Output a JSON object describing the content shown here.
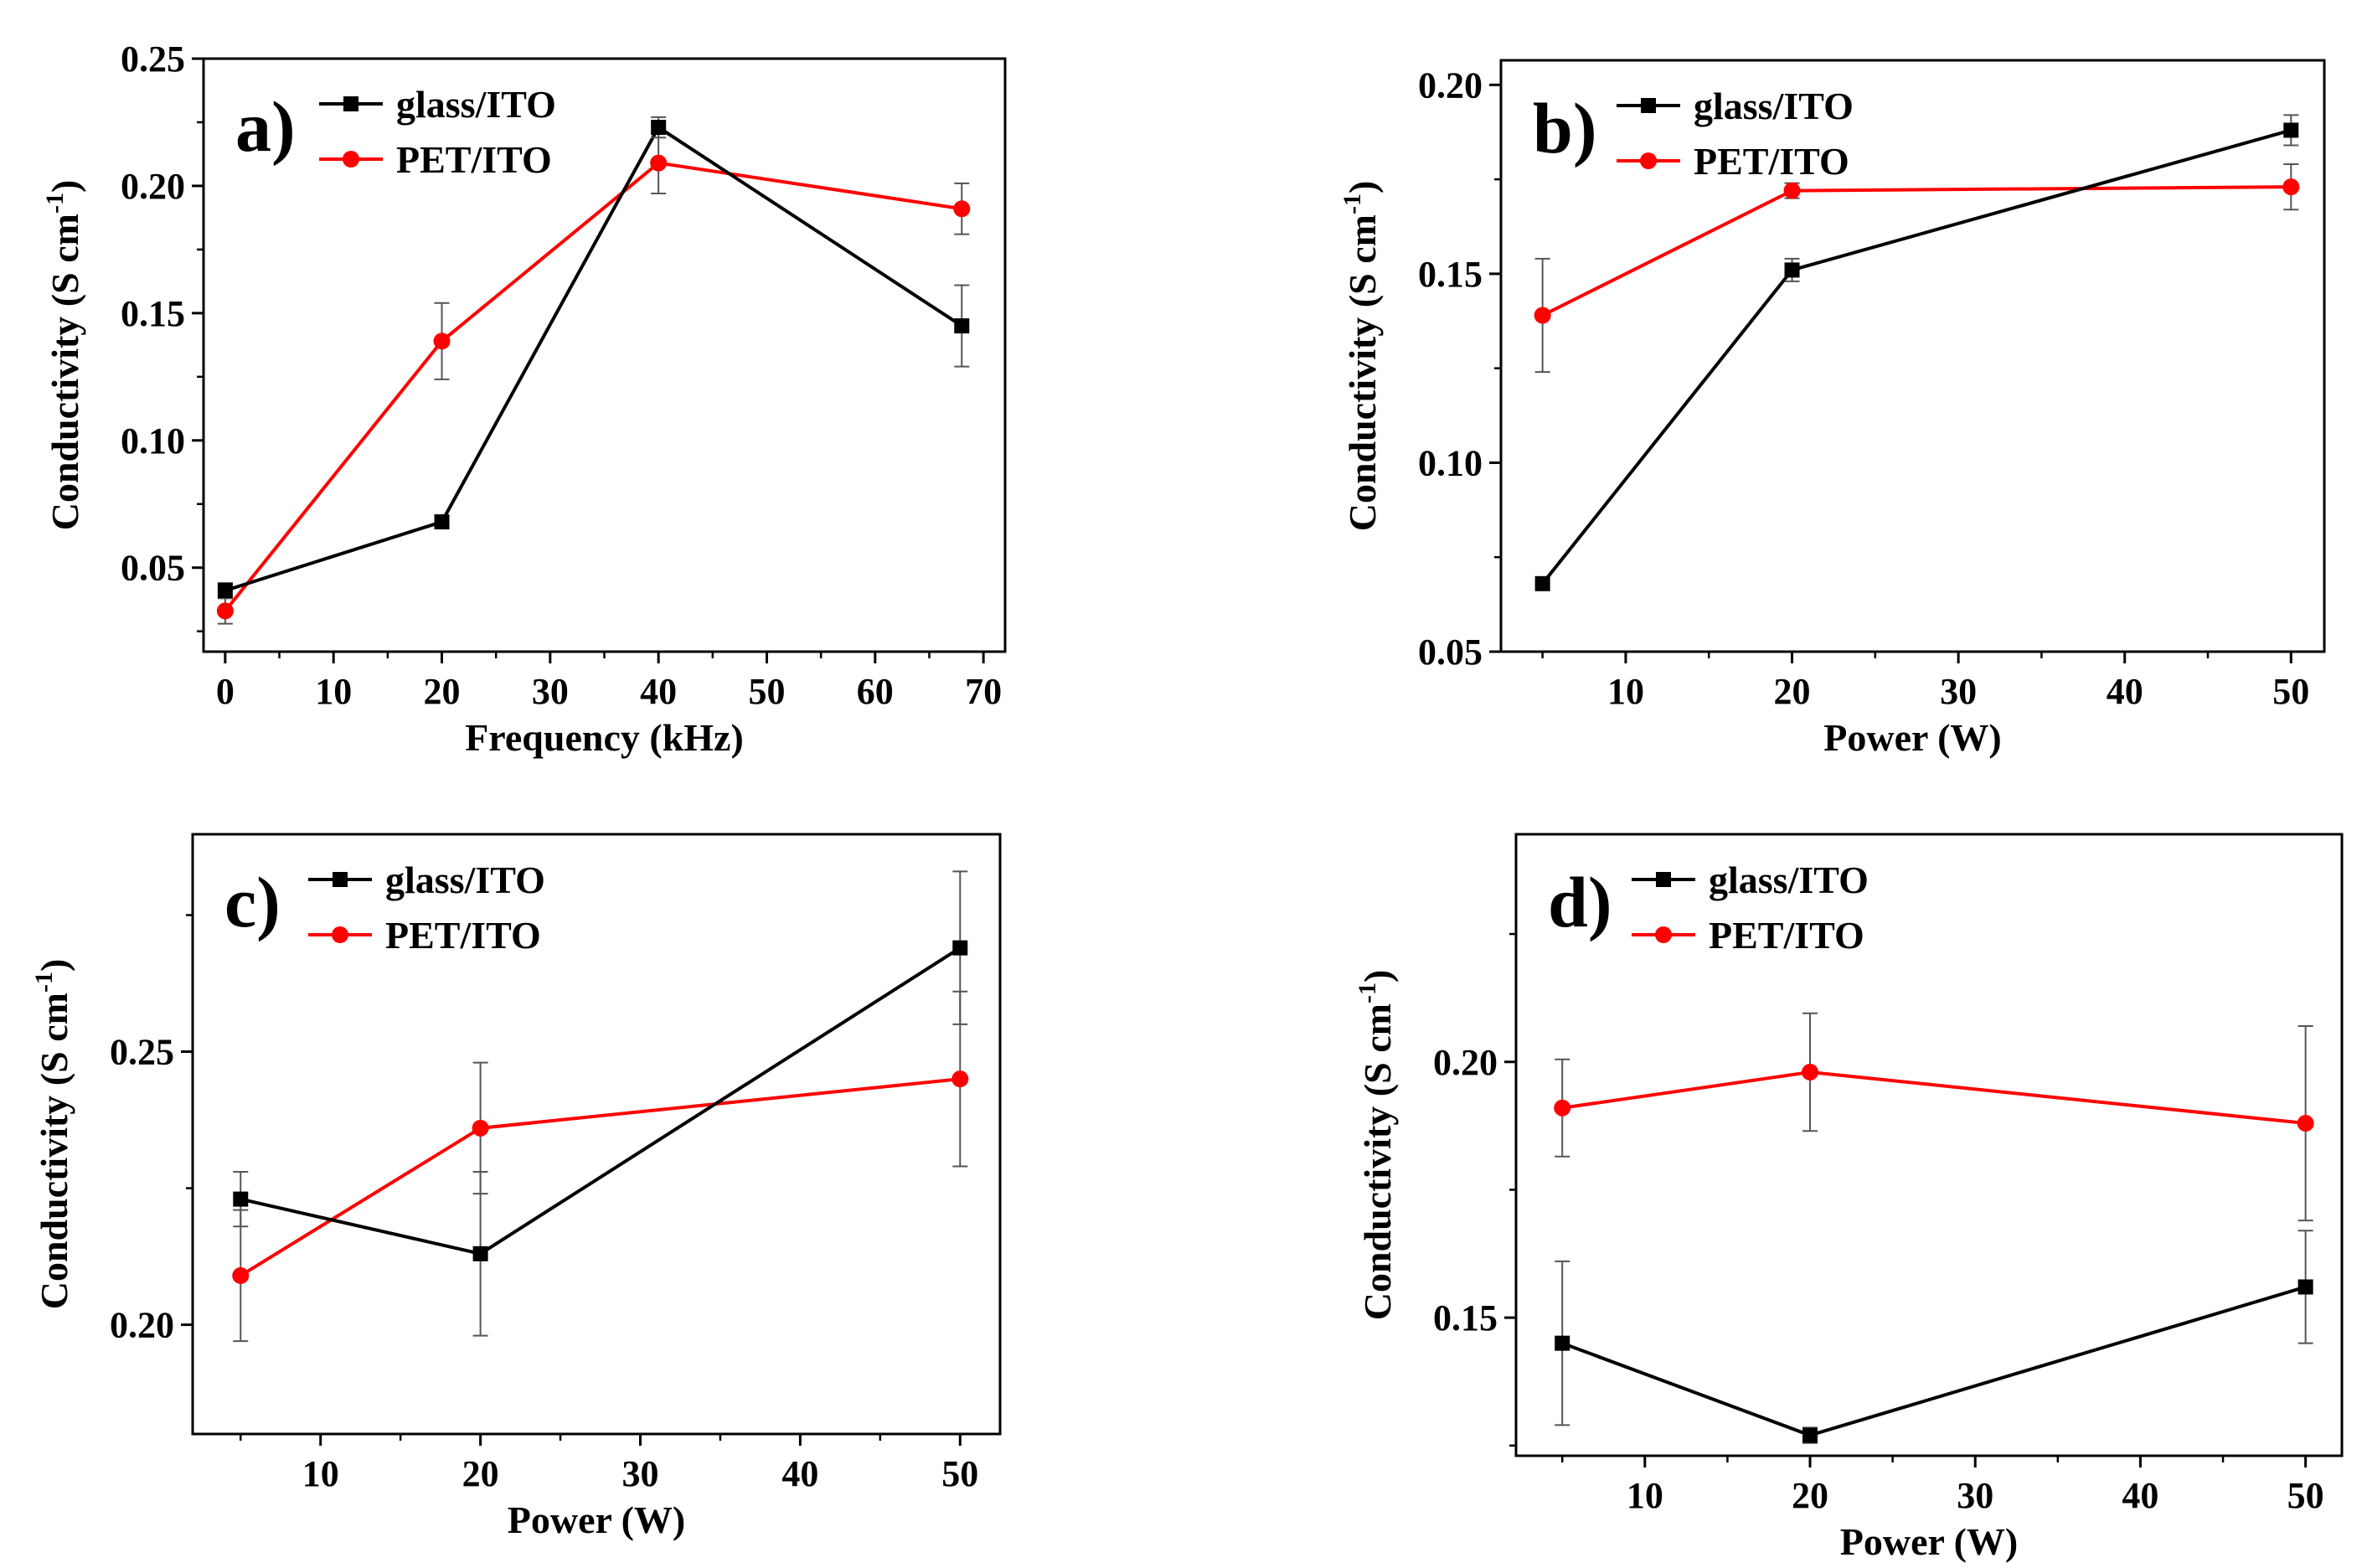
{
  "colors": {
    "glass": "#000000",
    "pet": "#ff0000",
    "error_bar": "#555555"
  },
  "chart_data": [
    {
      "type": "line",
      "panel_label": "a)",
      "xlabel": "Frequency (kHz)",
      "ylabel": "Conductivity (S cm",
      "ylabel_exp": "-1",
      "ylabel_close": ")",
      "xlim": [
        -2,
        72
      ],
      "ylim": [
        0.017,
        0.25
      ],
      "xticks": [
        0,
        10,
        20,
        30,
        40,
        50,
        60,
        70
      ],
      "xtick_labels": [
        "0",
        "10",
        "20",
        "30",
        "40",
        "50",
        "60",
        "70"
      ],
      "yticks": [
        0.05,
        0.1,
        0.15,
        0.2,
        0.25
      ],
      "ytick_labels": [
        "0.05",
        "0.10",
        "0.15",
        "0.20",
        "0.25"
      ],
      "legend_position": "top-left",
      "series": [
        {
          "name": "glass/ITO",
          "marker": "square",
          "x": [
            0,
            20,
            40,
            68
          ],
          "y": [
            0.041,
            0.068,
            0.223,
            0.145
          ],
          "err": [
            0.003,
            0.0,
            0.004,
            0.016
          ]
        },
        {
          "name": "PET/ITO",
          "marker": "circle",
          "x": [
            0,
            20,
            40,
            68
          ],
          "y": [
            0.033,
            0.139,
            0.209,
            0.191
          ],
          "err": [
            0.005,
            0.015,
            0.012,
            0.01
          ]
        }
      ]
    },
    {
      "type": "line",
      "panel_label": "b)",
      "xlabel": "Power (W)",
      "ylabel": "Conductivity (S cm",
      "ylabel_exp": "-1",
      "ylabel_close": ")",
      "xlim": [
        2.5,
        52
      ],
      "ylim": [
        0.05,
        0.2065
      ],
      "xticks": [
        10,
        20,
        30,
        40,
        50
      ],
      "xtick_labels": [
        "10",
        "20",
        "30",
        "40",
        "50"
      ],
      "yticks": [
        0.05,
        0.1,
        0.15,
        0.2
      ],
      "ytick_labels": [
        "0.05",
        "0.10",
        "0.15",
        "0.20"
      ],
      "legend_position": "top-left",
      "series": [
        {
          "name": "glass/ITO",
          "marker": "square",
          "x": [
            5,
            20,
            50
          ],
          "y": [
            0.068,
            0.151,
            0.188
          ],
          "err": [
            0.0,
            0.003,
            0.004
          ]
        },
        {
          "name": "PET/ITO",
          "marker": "circle",
          "x": [
            5,
            20,
            50
          ],
          "y": [
            0.139,
            0.172,
            0.173
          ],
          "err": [
            0.015,
            0.002,
            0.006
          ]
        }
      ]
    },
    {
      "type": "line",
      "panel_label": "c)",
      "xlabel": "Power (W)",
      "ylabel": "Conductivity (S cm",
      "ylabel_exp": "-1",
      "ylabel_close": ")",
      "xlim": [
        2,
        52.5
      ],
      "ylim": [
        0.18,
        0.2898
      ],
      "xticks": [
        10,
        20,
        30,
        40,
        50
      ],
      "xtick_labels": [
        "10",
        "20",
        "30",
        "40",
        "50"
      ],
      "yticks": [
        0.2,
        0.25
      ],
      "ytick_labels": [
        "0.20",
        "0.25"
      ],
      "legend_position": "top-left",
      "series": [
        {
          "name": "glass/ITO",
          "marker": "square",
          "x": [
            5,
            20,
            50
          ],
          "y": [
            0.223,
            0.213,
            0.269
          ],
          "err": [
            0.005,
            0.015,
            0.014
          ]
        },
        {
          "name": "PET/ITO",
          "marker": "circle",
          "x": [
            5,
            20,
            50
          ],
          "y": [
            0.209,
            0.236,
            0.245
          ],
          "err": [
            0.012,
            0.012,
            0.016
          ]
        }
      ]
    },
    {
      "type": "line",
      "panel_label": "d)",
      "xlabel": "Power (W)",
      "ylabel": "Conductivity (S cm",
      "ylabel_exp": "-1",
      "ylabel_close": ")",
      "xlim": [
        2.2,
        52.2
      ],
      "ylim": [
        0.123,
        0.2445
      ],
      "xticks": [
        10,
        20,
        30,
        40,
        50
      ],
      "xtick_labels": [
        "10",
        "20",
        "30",
        "40",
        "50"
      ],
      "yticks": [
        0.15,
        0.2
      ],
      "ytick_labels": [
        "0.15",
        "0.20"
      ],
      "legend_position": "top-left",
      "series": [
        {
          "name": "glass/ITO",
          "marker": "square",
          "x": [
            5,
            20,
            50
          ],
          "y": [
            0.145,
            0.127,
            0.156
          ],
          "err": [
            0.016,
            0.0015,
            0.011
          ]
        },
        {
          "name": "PET/ITO",
          "marker": "circle",
          "x": [
            5,
            20,
            50
          ],
          "y": [
            0.191,
            0.198,
            0.188
          ],
          "err": [
            0.0095,
            0.0115,
            0.019
          ]
        }
      ]
    }
  ]
}
